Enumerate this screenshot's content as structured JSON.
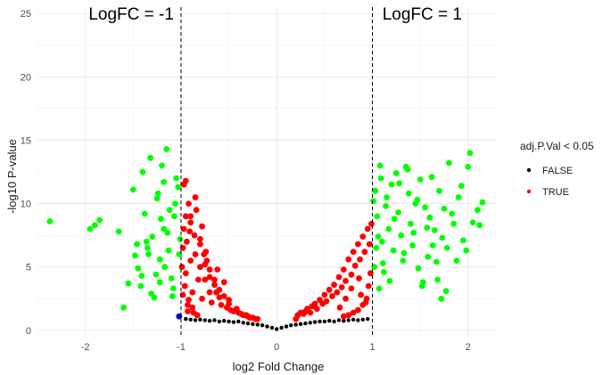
{
  "chart_data": {
    "type": "scatter",
    "title": "",
    "xlabel": "log2 Fold Change",
    "ylabel": "-log10 P-value",
    "xlim": [
      -2.5,
      2.3
    ],
    "ylim": [
      -0.5,
      25.5
    ],
    "x_ticks": [
      -2,
      -1,
      0,
      1,
      2
    ],
    "y_ticks": [
      0,
      5,
      10,
      15,
      20,
      25
    ],
    "grid": true,
    "vlines": [
      -1,
      1
    ],
    "annotations": [
      {
        "text": "LogFC = -1",
        "x": -1.52,
        "y": 24.5
      },
      {
        "text": "LogFC = 1",
        "x": 1.52,
        "y": 24.5
      }
    ],
    "legend": {
      "title": "adj.P.Val < 0.05",
      "position": "right",
      "entries": [
        {
          "label": "FALSE",
          "color": "#000000"
        },
        {
          "label": "TRUE",
          "color": "#ff0000"
        }
      ]
    },
    "colors": {
      "not_significant": "#000000",
      "significant": "#ff0000",
      "significant_abs_logfc_gt_1": "#00ff00",
      "highlight": "#0000cc"
    },
    "series": [
      {
        "color": "#000000",
        "x": [
          -0.95,
          -0.9,
          -0.85,
          -0.8,
          -0.75,
          -0.7,
          -0.65,
          -0.6,
          -0.55,
          -0.5,
          -0.45,
          -0.4,
          -0.35,
          -0.3,
          -0.25,
          -0.2,
          -0.15,
          -0.1,
          -0.05,
          0,
          0.05,
          0.1,
          0.15,
          0.2,
          0.25,
          0.3,
          0.35,
          0.4,
          0.45,
          0.5,
          0.55,
          0.6,
          0.65,
          0.7,
          0.75,
          0.8,
          0.85,
          0.9,
          0.95
        ],
        "y": [
          0.9,
          0.85,
          0.8,
          0.85,
          0.8,
          0.75,
          0.8,
          0.7,
          0.75,
          0.7,
          0.65,
          0.7,
          0.6,
          0.55,
          0.5,
          0.45,
          0.4,
          0.3,
          0.2,
          0.1,
          0.2,
          0.3,
          0.4,
          0.45,
          0.5,
          0.55,
          0.6,
          0.65,
          0.7,
          0.7,
          0.75,
          0.7,
          0.8,
          0.75,
          0.8,
          0.85,
          0.8,
          0.85,
          0.9
        ]
      },
      {
        "color": "#ff0000",
        "x": [
          -0.99,
          -0.98,
          -0.97,
          -0.96,
          -0.95,
          -0.95,
          -0.94,
          -0.93,
          -0.92,
          -0.9,
          -0.9,
          -0.88,
          -0.86,
          -0.85,
          -0.84,
          -0.82,
          -0.8,
          -0.8,
          -0.78,
          -0.76,
          -0.75,
          -0.73,
          -0.7,
          -0.7,
          -0.68,
          -0.65,
          -0.63,
          -0.6,
          -0.58,
          -0.55,
          -0.52,
          -0.5,
          -0.48,
          -0.45,
          -0.42,
          -0.4,
          -0.37,
          -0.35,
          -0.32,
          -0.3,
          -0.28,
          -0.25,
          -0.22,
          -0.2,
          -0.95,
          -0.9,
          -0.85,
          -0.8,
          -0.75,
          -0.7,
          -0.65,
          -0.6,
          -0.98,
          -0.92,
          -0.88,
          -0.93,
          -0.87,
          -0.83,
          -0.97,
          -0.91,
          -0.78,
          -0.74,
          -0.62,
          -0.55,
          -0.5,
          0.2,
          0.22,
          0.25,
          0.28,
          0.3,
          0.32,
          0.35,
          0.37,
          0.4,
          0.42,
          0.45,
          0.48,
          0.5,
          0.52,
          0.55,
          0.58,
          0.6,
          0.63,
          0.65,
          0.68,
          0.7,
          0.72,
          0.75,
          0.78,
          0.8,
          0.82,
          0.85,
          0.87,
          0.9,
          0.92,
          0.95,
          0.97,
          0.99,
          0.98,
          0.96,
          0.94,
          0.9,
          0.85,
          0.8,
          0.75,
          0.7,
          0.93,
          0.88,
          0.86,
          0.78,
          0.72,
          0.66
        ],
        "y": [
          5,
          6.5,
          8,
          3.5,
          9,
          4.5,
          7,
          2,
          10,
          5.5,
          8.5,
          3,
          7.5,
          6,
          9.5,
          4,
          5,
          7.2,
          2.5,
          6,
          4,
          5.5,
          3,
          4.8,
          2.2,
          4,
          3,
          3.2,
          2,
          2.7,
          1.8,
          2.4,
          1.6,
          1.5,
          1.7,
          1.4,
          1.3,
          1.2,
          1.2,
          1.1,
          1.0,
          1.0,
          0.9,
          0.9,
          11.8,
          9,
          10.5,
          6.8,
          5.2,
          4.2,
          3.6,
          2.6,
          2.8,
          2.4,
          1.8,
          1.5,
          1.4,
          1.2,
          11.5,
          7.8,
          8.2,
          6.2,
          4.8,
          3.8,
          2.1,
          0.9,
          1.2,
          1.4,
          1.3,
          1.5,
          1.7,
          1.4,
          1.9,
          2.1,
          1.7,
          2.4,
          2.1,
          2.8,
          2.3,
          3.2,
          2.7,
          3.6,
          3,
          4.2,
          3.4,
          4.8,
          3.9,
          5.6,
          4.4,
          6.2,
          5.1,
          6.8,
          5.6,
          7.4,
          6.2,
          8,
          6.8,
          8.4,
          4.5,
          3.5,
          2.5,
          2.0,
          1.6,
          1.4,
          1.2,
          1.1,
          2.2,
          2.8,
          4.1,
          3.3,
          2.5,
          1.8
        ]
      },
      {
        "color": "#00ff00",
        "x": [
          -2.37,
          -1.95,
          -1.9,
          -1.85,
          -1.65,
          -1.6,
          -1.5,
          -1.48,
          -1.45,
          -1.42,
          -1.4,
          -1.38,
          -1.35,
          -1.32,
          -1.3,
          -1.28,
          -1.25,
          -1.22,
          -1.2,
          -1.18,
          -1.15,
          -1.12,
          -1.1,
          -1.08,
          -1.05,
          -1.02,
          -1.01,
          -1.03,
          -1.06,
          -1.09,
          -1.13,
          -1.17,
          -1.21,
          -1.26,
          -1.31,
          -1.36,
          -1.41,
          -1.46,
          -1.55,
          -1.18,
          -1.22,
          -1.07,
          -1.14,
          -1.24,
          -1.34,
          1.01,
          1.02,
          1.04,
          1.05,
          1.07,
          1.09,
          1.1,
          1.12,
          1.15,
          1.17,
          1.2,
          1.22,
          1.25,
          1.27,
          1.3,
          1.32,
          1.35,
          1.38,
          1.4,
          1.42,
          1.45,
          1.48,
          1.5,
          1.52,
          1.55,
          1.58,
          1.6,
          1.62,
          1.65,
          1.68,
          1.7,
          1.72,
          1.75,
          1.78,
          1.8,
          1.85,
          1.9,
          1.95,
          2.0,
          2.02,
          2.05,
          2.1,
          2.15,
          1.03,
          1.06,
          1.08,
          1.11,
          1.14,
          1.18,
          1.23,
          1.28,
          1.33,
          1.37,
          1.43,
          1.47,
          1.53,
          1.57,
          1.63,
          1.67,
          1.73,
          1.77,
          1.83,
          1.88,
          1.98,
          1.93,
          2.12
        ],
        "y": [
          8.6,
          8.0,
          8.3,
          8.7,
          7.8,
          1.8,
          11.1,
          5.9,
          4.9,
          3.5,
          12.5,
          9.2,
          6.5,
          13.6,
          7.4,
          2.6,
          10.4,
          5.6,
          13.0,
          8.0,
          14.3,
          9.5,
          4.1,
          3.3,
          12.0,
          6.0,
          7.2,
          11.3,
          10.0,
          2.7,
          6.3,
          5.0,
          8.8,
          4.4,
          2.9,
          7.0,
          4.3,
          6.8,
          3.7,
          11.7,
          3.8,
          9.0,
          7.7,
          10.8,
          6.0,
          10.2,
          5.0,
          6.5,
          9.0,
          3.3,
          12.0,
          7.0,
          4.6,
          10.5,
          8.0,
          11.5,
          6.3,
          12.4,
          9.3,
          7.5,
          5.5,
          12.9,
          10.8,
          8.4,
          6.7,
          10.0,
          4.9,
          11.9,
          3.5,
          9.7,
          5.8,
          8.9,
          12.1,
          7.9,
          4.0,
          11.0,
          2.5,
          9.6,
          6.5,
          13.2,
          8.4,
          10.5,
          7.1,
          12.9,
          14.0,
          8.5,
          9.5,
          10.1,
          11.0,
          7.4,
          13.0,
          5.3,
          9.8,
          3.9,
          8.8,
          11.6,
          6.1,
          12.7,
          7.7,
          10.3,
          3.8,
          8.1,
          6.7,
          5.4,
          7.3,
          3.1,
          9.2,
          5.5,
          6.3,
          11.4,
          8.3
        ]
      },
      {
        "color": "#0000cc",
        "x": [
          -1.02
        ],
        "y": [
          1.1
        ]
      }
    ]
  }
}
